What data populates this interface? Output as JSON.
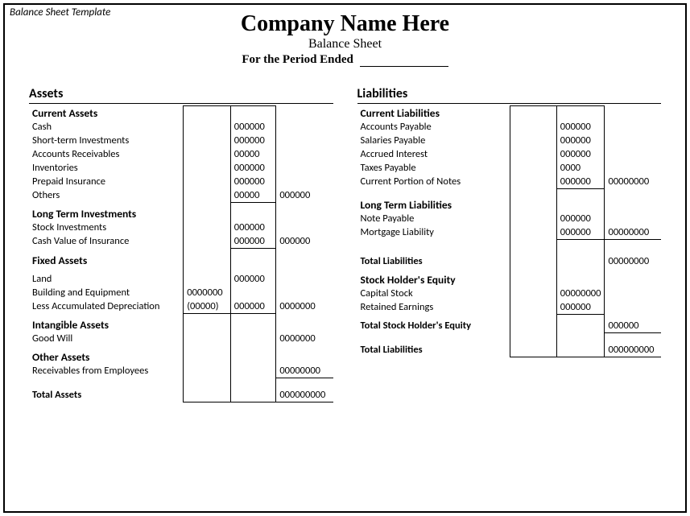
{
  "template_label": "Balance Sheet Template",
  "header": {
    "company": "Company Name Here",
    "title": "Balance Sheet",
    "period": "For the Period Ended"
  },
  "left": {
    "title": "Assets",
    "current_assets": {
      "heading": "Current Assets",
      "cash": {
        "label": "Cash",
        "v": "000000"
      },
      "sti": {
        "label": "Short-term Investments",
        "v": "000000"
      },
      "ar": {
        "label": "Accounts Receivables",
        "v": "00000"
      },
      "inv": {
        "label": "Inventories",
        "v": "000000"
      },
      "prepaid": {
        "label": "Prepaid Insurance",
        "v": "000000"
      },
      "others": {
        "label": "Others",
        "v": "00000",
        "sum": "000000"
      }
    },
    "long_term": {
      "heading": "Long Term Investments",
      "stock": {
        "label": "Stock Investments",
        "v": "000000"
      },
      "cashval": {
        "label": "Cash Value of Insurance",
        "v": "000000",
        "sum": "000000"
      }
    },
    "fixed": {
      "heading": "Fixed Assets",
      "land": {
        "label": "Land",
        "v": "000000"
      },
      "bldg": {
        "label": "Building and Equipment",
        "c1": "0000000"
      },
      "depr": {
        "label": "Less Accumulated Depreciation",
        "c1": "(00000)",
        "v": "000000",
        "sum": "0000000"
      }
    },
    "intangible": {
      "heading": "Intangible Assets",
      "goodwill": {
        "label": "Good Will",
        "sum": "0000000"
      }
    },
    "other": {
      "heading": "Other Assets",
      "recv": {
        "label": "Receivables from Employees",
        "sum": "00000000"
      }
    },
    "total": {
      "label": "Total Assets",
      "sum": "000000000"
    }
  },
  "right": {
    "title": "Liabilities",
    "current": {
      "heading": "Current Liabilities",
      "ap": {
        "label": "Accounts Payable",
        "v": "000000"
      },
      "sp": {
        "label": "Salaries Payable",
        "v": "000000"
      },
      "ai": {
        "label": "Accrued Interest",
        "v": "000000"
      },
      "tp": {
        "label": "Taxes Payable",
        "v": "0000"
      },
      "cpn": {
        "label": "Current Portion of Notes",
        "v": "000000",
        "sum": "00000000"
      }
    },
    "long_term": {
      "heading": "Long Term Liabilities",
      "np": {
        "label": "Note Payable",
        "v": "000000"
      },
      "ml": {
        "label": "Mortgage Liability",
        "v": "000000",
        "sum": "00000000"
      }
    },
    "total_liab": {
      "label": "Total Liabilities",
      "sum": "00000000"
    },
    "equity": {
      "heading": "Stock Holder's Equity",
      "cs": {
        "label": "Capital Stock",
        "v": "00000000"
      },
      "re": {
        "label": "Retained Earnings",
        "v": "000000"
      }
    },
    "total_equity": {
      "label": "Total Stock Holder's Equity",
      "sum": "000000"
    },
    "total": {
      "label": "Total Liabilities",
      "sum": "000000000"
    }
  }
}
